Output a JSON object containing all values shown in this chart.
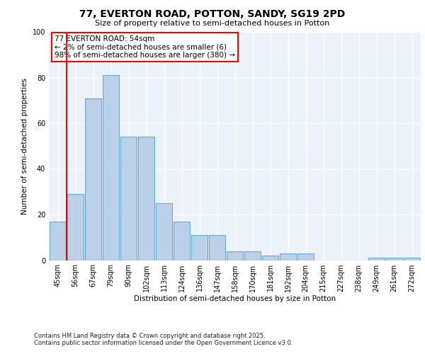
{
  "title1": "77, EVERTON ROAD, POTTON, SANDY, SG19 2PD",
  "title2": "Size of property relative to semi-detached houses in Potton",
  "xlabel": "Distribution of semi-detached houses by size in Potton",
  "ylabel": "Number of semi-detached properties",
  "categories": [
    "45sqm",
    "56sqm",
    "67sqm",
    "79sqm",
    "90sqm",
    "102sqm",
    "113sqm",
    "124sqm",
    "136sqm",
    "147sqm",
    "158sqm",
    "170sqm",
    "181sqm",
    "192sqm",
    "204sqm",
    "215sqm",
    "227sqm",
    "238sqm",
    "249sqm",
    "261sqm",
    "272sqm"
  ],
  "values": [
    17,
    29,
    71,
    81,
    54,
    54,
    25,
    17,
    11,
    11,
    4,
    4,
    2,
    3,
    3,
    0,
    0,
    0,
    1,
    1,
    1
  ],
  "bar_color": "#bad0e8",
  "bar_edge_color": "#6aaad4",
  "red_line_x": 0.5,
  "annotation_text": "77 EVERTON ROAD: 54sqm\n← 2% of semi-detached houses are smaller (6)\n98% of semi-detached houses are larger (380) →",
  "ylim": [
    0,
    100
  ],
  "background_color": "#edf2f9",
  "footer1": "Contains HM Land Registry data © Crown copyright and database right 2025.",
  "footer2": "Contains public sector information licensed under the Open Government Licence v3.0."
}
